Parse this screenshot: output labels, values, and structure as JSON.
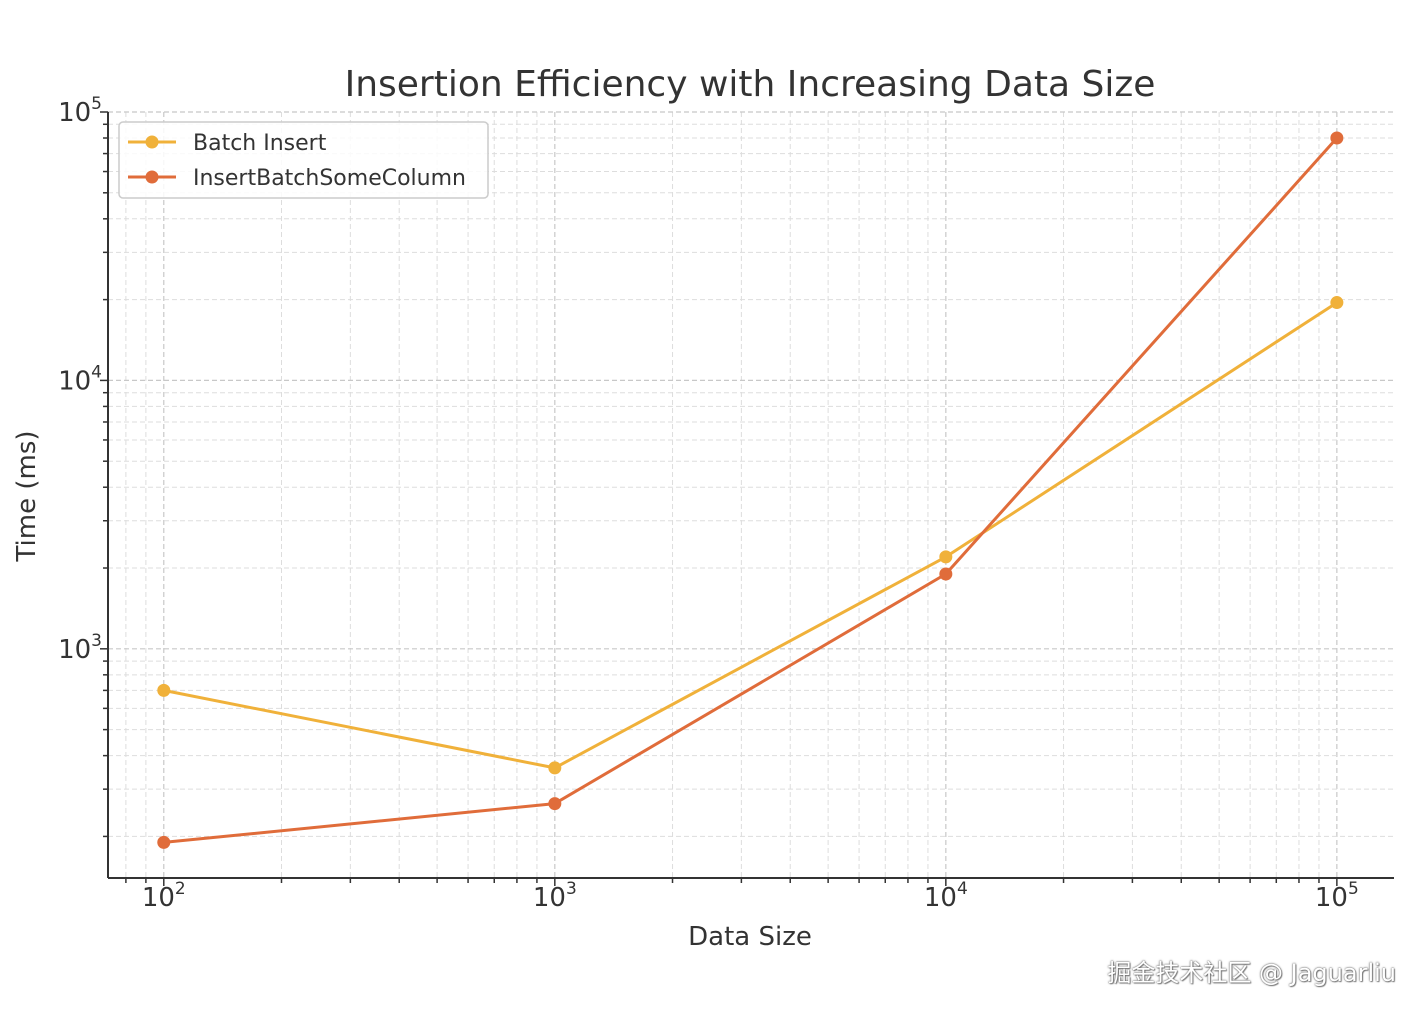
{
  "chart_data": {
    "type": "line",
    "title": "Insertion Efficiency with Increasing Data Size",
    "xlabel": "Data Size",
    "ylabel": "Time (ms)",
    "xscale": "log",
    "yscale": "log",
    "xlim": [
      72,
      140000
    ],
    "ylim": [
      140,
      100000
    ],
    "x": [
      100,
      1000,
      10000,
      100000
    ],
    "x_ticks": [
      {
        "value": 100,
        "base": "10",
        "exp": "2"
      },
      {
        "value": 1000,
        "base": "10",
        "exp": "3"
      },
      {
        "value": 10000,
        "base": "10",
        "exp": "4"
      },
      {
        "value": 100000,
        "base": "10",
        "exp": "5"
      }
    ],
    "y_ticks": [
      {
        "value": 1000,
        "base": "10",
        "exp": "3"
      },
      {
        "value": 10000,
        "base": "10",
        "exp": "4"
      },
      {
        "value": 100000,
        "base": "10",
        "exp": "5"
      }
    ],
    "grid": true,
    "legend_position": "top-left",
    "series": [
      {
        "name": "Batch Insert",
        "color": "#F0B13A",
        "values": [
          700,
          360,
          2200,
          19500
        ]
      },
      {
        "name": "InsertBatchSomeColumn",
        "color": "#E06C3A",
        "values": [
          190,
          265,
          1900,
          80000
        ]
      }
    ]
  },
  "watermark": "掘金技术社区 @ Jaguarliu"
}
